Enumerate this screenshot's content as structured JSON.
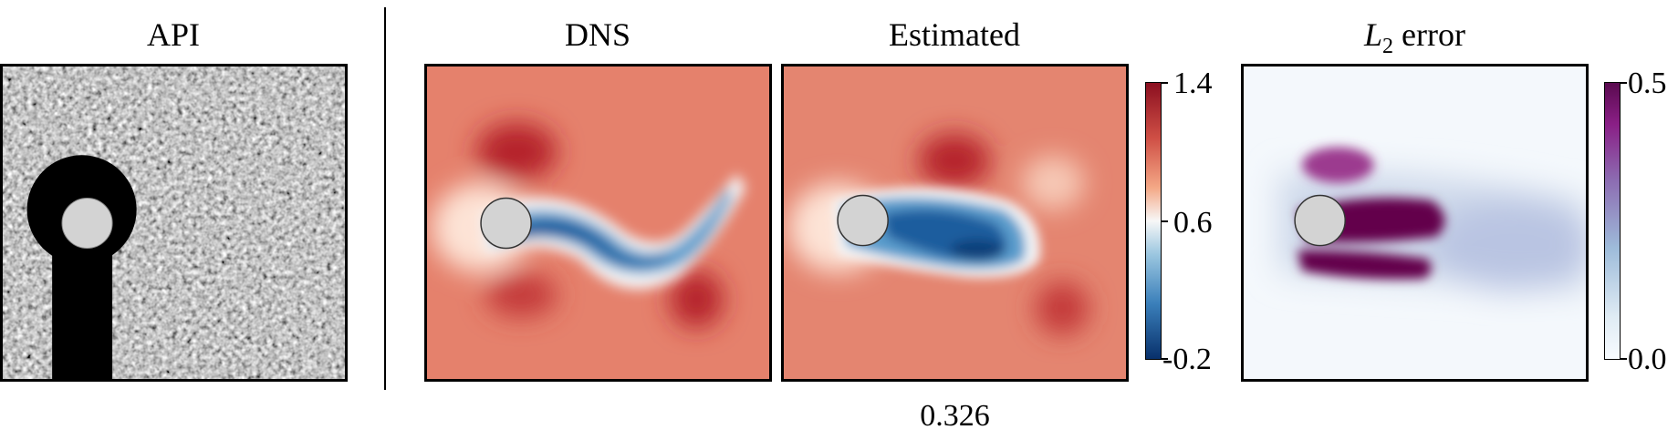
{
  "panels": {
    "api": {
      "title": "API"
    },
    "dns": {
      "title": "DNS"
    },
    "estimated": {
      "title": "Estimated"
    },
    "error": {
      "title_symbol": "L",
      "title_subscript": "2",
      "title_text": "error"
    }
  },
  "colorbar_velocity": {
    "max_label": "1.4",
    "mid_label": "0.6",
    "min_label": "-0.2",
    "low_color": "#08306b",
    "mid_color": "#f7f7f7",
    "high_color": "#8b0f20"
  },
  "colorbar_error": {
    "max_label": "0.5",
    "min_label": "0.0",
    "low_color": "#f7fbff",
    "high_color": "#5a0a4f"
  },
  "metric_value": "0.326",
  "colors": {
    "cylinder": "#d3d3d3",
    "mask": "#000000",
    "field_base": "#e0735f",
    "error_high": "#64004b"
  }
}
